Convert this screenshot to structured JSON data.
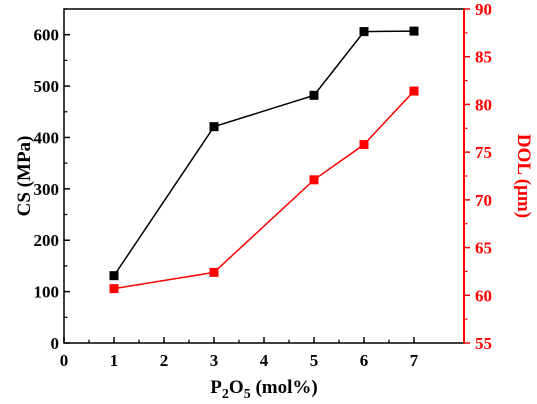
{
  "chart_data": {
    "type": "line",
    "xlabel": {
      "base": "P",
      "sub1": "2",
      "mid": "O",
      "sub2": "5",
      "unit": " (mol%)"
    },
    "ylabel_left": "CS (MPa)",
    "ylabel_right": "DOL (μm)",
    "xlim": [
      0,
      8
    ],
    "x_ticks": [
      0,
      1,
      2,
      3,
      4,
      5,
      6,
      7
    ],
    "y_left_lim": [
      0,
      650
    ],
    "y_left_ticks": [
      0,
      100,
      200,
      300,
      400,
      500,
      600
    ],
    "y_right_lim": [
      55,
      90
    ],
    "y_right_ticks": [
      55,
      60,
      65,
      70,
      75,
      80,
      85,
      90
    ],
    "colors": {
      "cs": "#000000",
      "dol": "#ff0000"
    },
    "series": [
      {
        "axis": "left",
        "color": "#000000",
        "x": [
          1,
          3,
          5,
          6,
          7
        ],
        "y": [
          131,
          421,
          482,
          606,
          607
        ]
      },
      {
        "axis": "right",
        "color": "#ff0000",
        "x": [
          1,
          3,
          5,
          6,
          7
        ],
        "y": [
          60.7,
          62.4,
          72.1,
          75.8,
          81.4
        ]
      }
    ]
  }
}
